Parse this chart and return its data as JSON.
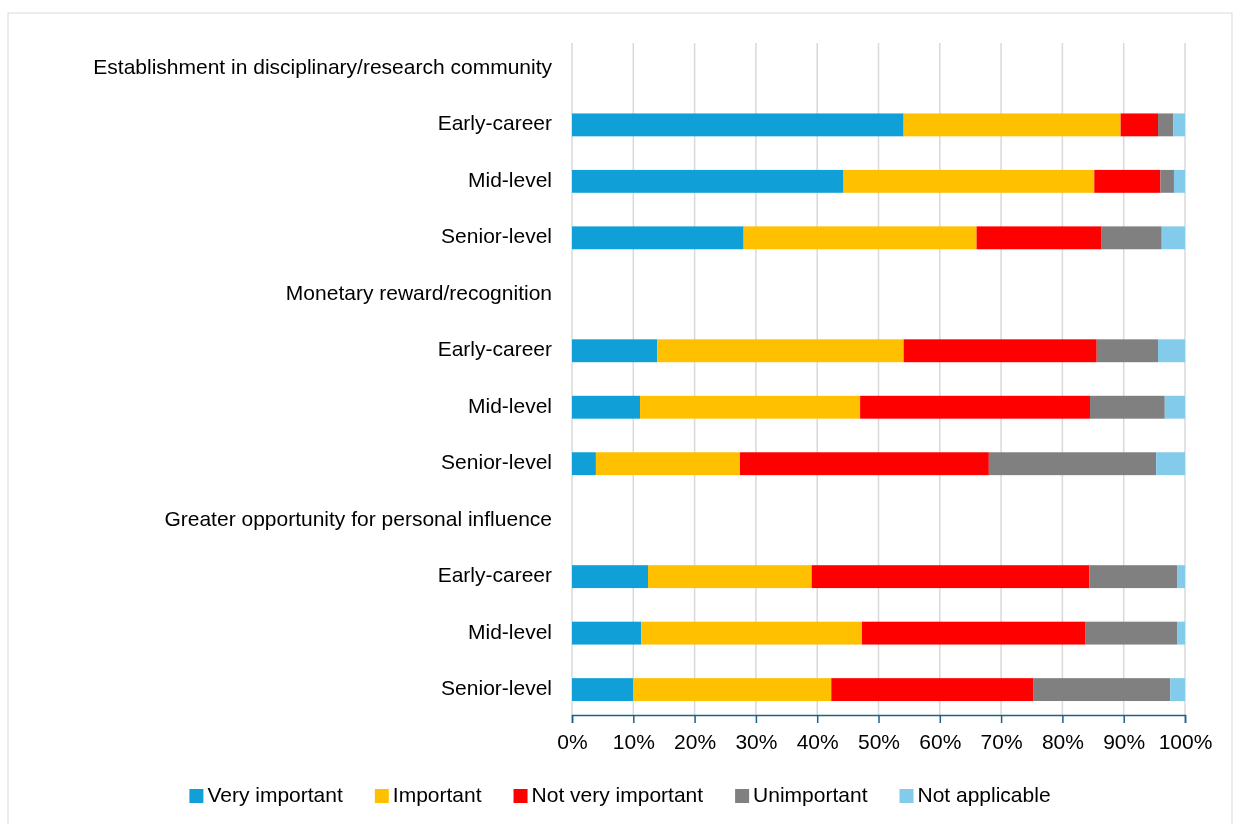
{
  "chart_data": {
    "type": "bar",
    "orientation": "horizontal",
    "stacked": true,
    "categories": [
      "Establishment in disciplinary/research community",
      "Early-career",
      "Mid-level",
      "Senior-level",
      "Monetary reward/recognition",
      "Early-career",
      "Mid-level",
      "Senior-level",
      "Greater opportunity for personal influence",
      "Early-career",
      "Mid-level",
      "Senior-level"
    ],
    "series": [
      {
        "name": "Very important",
        "color": "#109fd6",
        "values": [
          null,
          54.1,
          44.3,
          28.0,
          null,
          13.9,
          11.1,
          3.9,
          null,
          12.4,
          11.3,
          10.0
        ]
      },
      {
        "name": "Important",
        "color": "#ffc000",
        "values": [
          null,
          35.4,
          40.9,
          38.0,
          null,
          40.2,
          35.9,
          23.5,
          null,
          26.7,
          36.0,
          32.3
        ]
      },
      {
        "name": "Not very important",
        "color": "#ff0000",
        "values": [
          null,
          6.1,
          10.8,
          20.4,
          null,
          31.5,
          37.5,
          40.6,
          null,
          45.3,
          36.4,
          33.0
        ]
      },
      {
        "name": "Unimportant",
        "color": "#808080",
        "values": [
          null,
          2.5,
          2.2,
          9.8,
          null,
          10.0,
          12.2,
          27.3,
          null,
          14.3,
          15.0,
          22.3
        ]
      },
      {
        "name": "Not applicable",
        "color": "#83cbeb",
        "values": [
          null,
          1.9,
          1.8,
          3.8,
          null,
          4.4,
          3.3,
          4.7,
          null,
          1.3,
          1.3,
          2.4
        ]
      }
    ],
    "xlim": [
      0,
      100
    ],
    "xticks": [
      {
        "value": 0,
        "label": "0%"
      },
      {
        "value": 10,
        "label": "10%"
      },
      {
        "value": 20,
        "label": "20%"
      },
      {
        "value": 30,
        "label": "30%"
      },
      {
        "value": 40,
        "label": "40%"
      },
      {
        "value": 50,
        "label": "50%"
      },
      {
        "value": 60,
        "label": "60%"
      },
      {
        "value": 70,
        "label": "70%"
      },
      {
        "value": 80,
        "label": "80%"
      },
      {
        "value": 90,
        "label": "90%"
      },
      {
        "value": 100,
        "label": "100%"
      }
    ],
    "grid": "x",
    "legend": "bottom"
  }
}
